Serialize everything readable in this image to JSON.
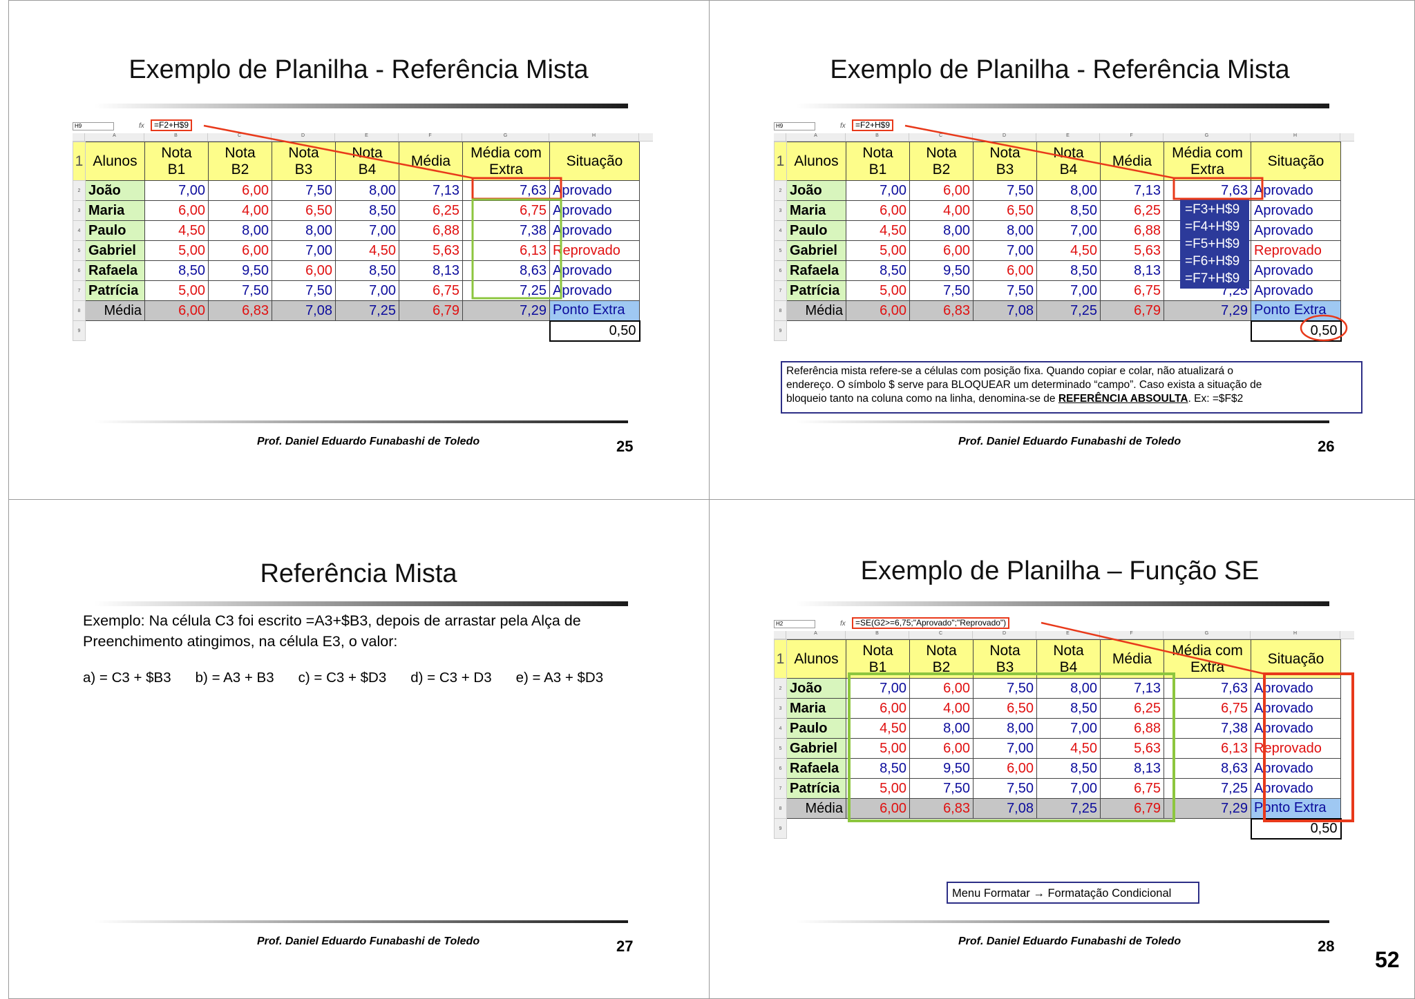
{
  "page_number": "52",
  "author": "Prof. Daniel Eduardo Funabashi de Toledo",
  "sheet_cols": [
    "A",
    "B",
    "C",
    "D",
    "E",
    "F",
    "G",
    "H"
  ],
  "headers": [
    [
      "Alunos"
    ],
    [
      "Nota",
      "B1"
    ],
    [
      "Nota",
      "B2"
    ],
    [
      "Nota",
      "B3"
    ],
    [
      "Nota",
      "B4"
    ],
    [
      "Média"
    ],
    [
      "Média com",
      "Extra"
    ],
    [
      "Situação"
    ]
  ],
  "rows": [
    {
      "name": "João",
      "b1": "7,00",
      "b2": "6,00",
      "b3": "7,50",
      "b4": "8,00",
      "media": "7,13",
      "extra": "7,63",
      "sit": "Aprovado"
    },
    {
      "name": "Maria",
      "b1": "6,00",
      "b2": "4,00",
      "b3": "6,50",
      "b4": "8,50",
      "media": "6,25",
      "extra": "6,75",
      "sit": "Aprovado"
    },
    {
      "name": "Paulo",
      "b1": "4,50",
      "b2": "8,00",
      "b3": "8,00",
      "b4": "7,00",
      "media": "6,88",
      "extra": "7,38",
      "sit": "Aprovado"
    },
    {
      "name": "Gabriel",
      "b1": "5,00",
      "b2": "6,00",
      "b3": "7,00",
      "b4": "4,50",
      "media": "5,63",
      "extra": "6,13",
      "sit": "Reprovado"
    },
    {
      "name": "Rafaela",
      "b1": "8,50",
      "b2": "9,50",
      "b3": "6,00",
      "b4": "8,50",
      "media": "8,13",
      "extra": "8,63",
      "sit": "Aprovado"
    },
    {
      "name": "Patrícia",
      "b1": "5,00",
      "b2": "7,50",
      "b3": "7,50",
      "b4": "7,00",
      "media": "6,75",
      "extra": "7,25",
      "sit": "Aprovado"
    }
  ],
  "avg_row": {
    "label": "Média",
    "b1": "6,00",
    "b2": "6,83",
    "b3": "7,08",
    "b4": "7,25",
    "media": "6,79",
    "extra": "7,29",
    "sit": "Ponto Extra"
  },
  "ponto_extra_value": "0,50",
  "colors": {
    "red": "#e01010",
    "blue": "#0c0c9c",
    "header_yellow": "#fdfd8a",
    "name_green": "#d8f5bd",
    "highlight_red": "#e8391a",
    "callout_border": "#2c2e86"
  },
  "slide25": {
    "title": "Exemplo de Planilha - Referência Mista",
    "name_box": "H9",
    "formula": "=F2+H$9",
    "number": "25"
  },
  "slide26": {
    "title": "Exemplo de Planilha - Referência Mista",
    "name_box": "H9",
    "formula": "=F2+H$9",
    "copied_formulas": [
      "=F3+H$9",
      "=F4+H$9",
      "=F5+H$9",
      "=F6+H$9",
      "=F7+H$9"
    ],
    "note_line1": "Referência mista refere-se a células com posição fixa. Quando copiar e colar, não atualizará o",
    "note_line2": "endereço. O símbolo $ serve para BLOQUEAR um determinado “campo”. Caso exista a situação de",
    "note_line3_pre": "bloqueio tanto na coluna como na linha, denomina-se de ",
    "note_line3_bold": "REFERÊNCIA ABSOULTA",
    "note_line3_post": ". Ex: =$F$2",
    "number": "26"
  },
  "slide27": {
    "title": "Referência Mista",
    "question_line1": "Exemplo: Na célula C3 foi escrito =A3+$B3, depois de arrastar pela Alça de",
    "question_line2": "Preenchimento atingimos, na célula E3, o valor:",
    "options": [
      "a) = C3 + $B3",
      "b) = A3 + B3",
      "c) = C3 + $D3",
      "d) = C3 + D3",
      "e) = A3 + $D3"
    ],
    "number": "27"
  },
  "slide28": {
    "title": "Exemplo de Planilha – Função SE",
    "name_box": "H2",
    "formula": "=SE(G2>=6,75;\"Aprovado\";\"Reprovado\")",
    "menu_note": "Menu Formatar → Formatação Condicional",
    "number": "28"
  }
}
